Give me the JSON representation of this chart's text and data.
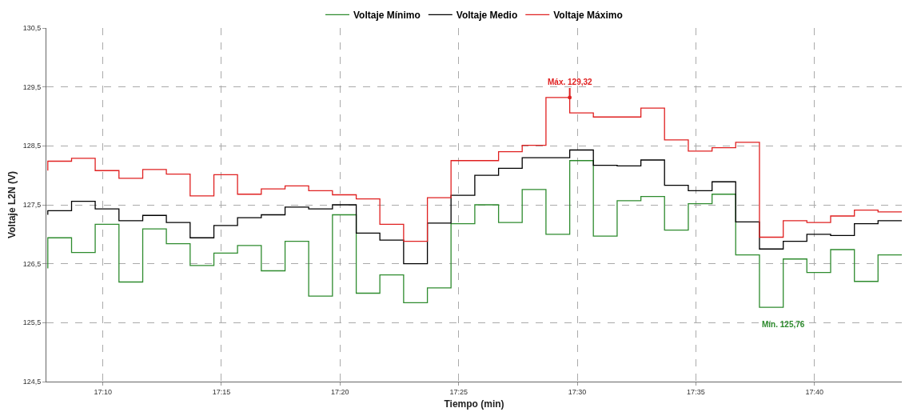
{
  "chart_data": {
    "type": "step",
    "xlabel": "Tiempo (min)",
    "ylabel": "Voltaje L2N (V)",
    "x": [
      17.128,
      17.1447,
      17.1613,
      17.178,
      17.1947,
      17.2113,
      17.228,
      17.2447,
      17.2613,
      17.278,
      17.2947,
      17.3113,
      17.328,
      17.3447,
      17.3613,
      17.378,
      17.3947,
      17.4113,
      17.428,
      17.4447,
      17.4613,
      17.478,
      17.4947,
      17.5113,
      17.528,
      17.5447,
      17.5613,
      17.578,
      17.5947,
      17.6113,
      17.628,
      17.6447,
      17.6613,
      17.678,
      17.6947,
      17.7113,
      17.728
    ],
    "series": [
      {
        "name": "Voltaje Mínimo",
        "color": "#2e8b2e",
        "values": [
          126.42,
          126.94,
          126.69,
          127.17,
          126.19,
          127.09,
          126.84,
          126.47,
          126.68,
          126.81,
          126.38,
          126.88,
          125.95,
          127.33,
          126.0,
          126.31,
          125.84,
          126.09,
          127.18,
          127.5,
          127.2,
          127.76,
          127.0,
          128.25,
          126.97,
          127.57,
          127.64,
          127.07,
          127.52,
          127.68,
          126.65,
          125.76,
          126.58,
          126.35,
          126.74,
          126.2,
          126.65
        ]
      },
      {
        "name": "Voltaje Medio",
        "color": "#000000",
        "values": [
          127.33,
          127.4,
          127.56,
          127.43,
          127.23,
          127.32,
          127.2,
          126.94,
          127.15,
          127.28,
          127.33,
          127.46,
          127.43,
          127.5,
          127.02,
          126.9,
          126.5,
          127.19,
          127.66,
          128.0,
          128.12,
          128.3,
          128.3,
          128.43,
          128.17,
          128.16,
          128.26,
          127.83,
          127.74,
          127.89,
          127.21,
          126.75,
          126.88,
          127.0,
          126.98,
          127.18,
          127.23
        ]
      },
      {
        "name": "Voltaje Máximo",
        "color": "#e02020",
        "values": [
          128.08,
          128.24,
          128.29,
          128.08,
          127.95,
          128.1,
          128.02,
          127.65,
          128.01,
          127.68,
          127.77,
          127.82,
          127.74,
          127.67,
          127.6,
          127.17,
          126.88,
          127.62,
          128.25,
          128.25,
          128.4,
          128.51,
          129.32,
          129.06,
          128.99,
          128.99,
          129.14,
          128.6,
          128.41,
          128.47,
          128.56,
          126.95,
          127.23,
          127.2,
          127.31,
          127.41,
          127.38
        ]
      }
    ],
    "xlim": [
      17.127,
      17.728
    ],
    "xticks": [
      {
        "value": 17.1667,
        "label": "17:10"
      },
      {
        "value": 17.25,
        "label": "17:15"
      },
      {
        "value": 17.3333,
        "label": "17:20"
      },
      {
        "value": 17.4167,
        "label": "17:25"
      },
      {
        "value": 17.5,
        "label": "17:30"
      },
      {
        "value": 17.5833,
        "label": "17:35"
      },
      {
        "value": 17.6667,
        "label": "17:40"
      }
    ],
    "ylim": [
      124.5,
      130.5
    ],
    "yticks": [
      {
        "value": 124.5,
        "label": "124,5"
      },
      {
        "value": 125.5,
        "label": "125,5"
      },
      {
        "value": 126.5,
        "label": "126,5"
      },
      {
        "value": 127.5,
        "label": "127,5"
      },
      {
        "value": 128.5,
        "label": "128,5"
      },
      {
        "value": 129.5,
        "label": "129,5"
      },
      {
        "value": 130.5,
        "label": "130,5"
      }
    ],
    "annotations": [
      {
        "text": "Máx. 129,32",
        "x": 17.4947,
        "y": 129.32
      },
      {
        "text": "Mín. 125,76",
        "x": 17.6447,
        "y": 125.76
      }
    ],
    "grid": true,
    "legend": "top",
    "marker": "none",
    "line_style": "solid"
  }
}
